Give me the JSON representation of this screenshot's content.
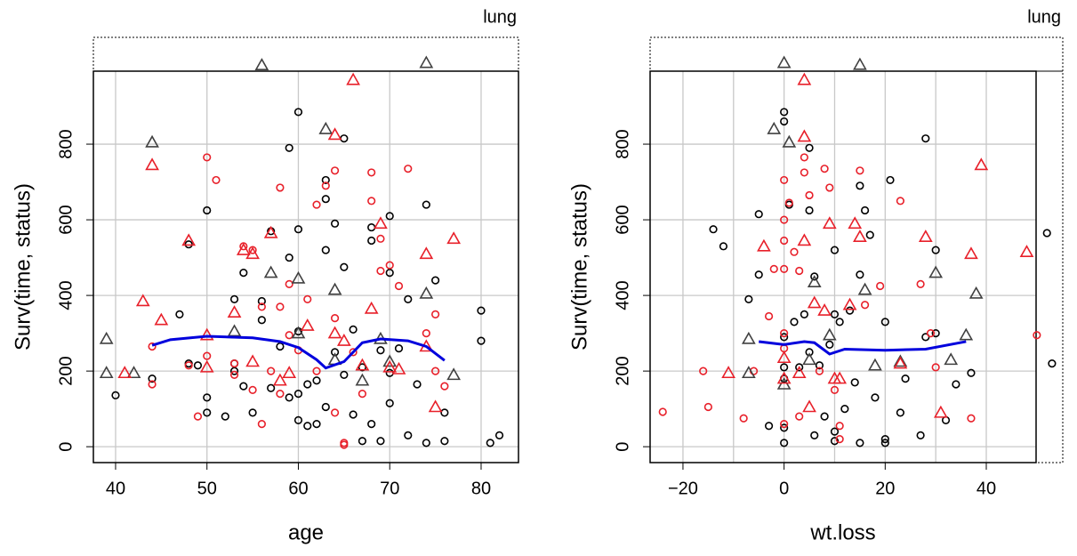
{
  "chart_data": [
    {
      "type": "scatter",
      "strip": "lung",
      "xlabel": "age",
      "ylabel": "Surv(time, status)",
      "xlim": [
        37.57,
        84.09
      ],
      "ylim": [
        -42,
        993
      ],
      "xticks": [
        40,
        50,
        60,
        70,
        80
      ],
      "yticks": [
        0,
        200,
        400,
        600,
        800
      ],
      "grid": true,
      "series": [
        {
          "style": "circle",
          "color": "#000000",
          "x": [
            40,
            44,
            47,
            48,
            48,
            49,
            50,
            50,
            50,
            52,
            53,
            53,
            53,
            54,
            54,
            55,
            56,
            56,
            57,
            57,
            58,
            59,
            59,
            59,
            60,
            60,
            60,
            60,
            60,
            61,
            61,
            62,
            62,
            63,
            63,
            63,
            63,
            64,
            64,
            65,
            65,
            65,
            66,
            66,
            67,
            67,
            68,
            68,
            68,
            69,
            69,
            70,
            70,
            70,
            70,
            71,
            72,
            72,
            73,
            74,
            74,
            75,
            76,
            76,
            80,
            80,
            81,
            82
          ],
          "values": [
            136,
            180,
            350,
            220,
            535,
            215,
            625,
            130,
            90,
            80,
            390,
            200,
            220,
            460,
            160,
            90,
            385,
            335,
            570,
            155,
            265,
            790,
            500,
            130,
            885,
            575,
            305,
            140,
            70,
            165,
            55,
            175,
            60,
            705,
            655,
            520,
            105,
            250,
            590,
            815,
            475,
            190,
            310,
            85,
            210,
            15,
            580,
            545,
            60,
            255,
            15,
            610,
            460,
            195,
            115,
            260,
            390,
            30,
            165,
            640,
            10,
            440,
            90,
            15,
            360,
            280,
            10,
            30
          ]
        },
        {
          "style": "circle",
          "color": "#e8202a",
          "x": [
            44,
            44,
            48,
            49,
            50,
            50,
            51,
            53,
            53,
            54,
            55,
            55,
            56,
            56,
            57,
            58,
            58,
            58,
            59,
            59,
            60,
            61,
            62,
            62,
            63,
            64,
            64,
            64,
            65,
            65,
            66,
            67,
            68,
            68,
            69,
            69,
            70,
            71,
            72,
            74,
            75,
            75,
            76
          ],
          "values": [
            265,
            165,
            215,
            80,
            765,
            240,
            705,
            220,
            190,
            530,
            520,
            150,
            60,
            370,
            200,
            370,
            685,
            140,
            295,
            430,
            255,
            390,
            640,
            200,
            690,
            730,
            340,
            90,
            10,
            5,
            250,
            140,
            725,
            650,
            465,
            550,
            480,
            425,
            735,
            300,
            350,
            200,
            160
          ]
        },
        {
          "style": "triangle",
          "color": "#404040",
          "x": [
            39,
            39,
            42,
            44,
            53,
            56,
            57,
            60,
            60,
            63,
            64,
            64,
            67,
            69,
            70,
            74,
            74,
            77
          ],
          "values": [
            285,
            195,
            195,
            805,
            305,
            1009,
            460,
            445,
            300,
            840,
            415,
            230,
            175,
            285,
            225,
            1015,
            405,
            190
          ]
        },
        {
          "style": "triangle",
          "color": "#e8202a",
          "x": [
            41,
            43,
            44,
            45,
            48,
            50,
            50,
            53,
            54,
            55,
            55,
            57,
            58,
            59,
            61,
            64,
            64,
            65,
            66,
            67,
            68,
            69,
            70,
            71,
            74,
            74,
            75,
            77
          ],
          "values": [
            195,
            385,
            745,
            335,
            545,
            210,
            295,
            355,
            520,
            510,
            225,
            565,
            175,
            195,
            320,
            825,
            300,
            280,
            970,
            215,
            365,
            590,
            210,
            205,
            510,
            265,
            105,
            550
          ]
        },
        {
          "style": "line",
          "color": "#0000dd",
          "x": [
            44,
            46,
            50,
            55,
            58,
            60,
            62,
            63,
            65,
            67,
            69,
            72,
            74,
            76
          ],
          "values": [
            268,
            283,
            292,
            288,
            278,
            262,
            230,
            208,
            225,
            275,
            285,
            280,
            265,
            228
          ]
        }
      ]
    },
    {
      "type": "scatter",
      "strip": "lung",
      "xlabel": "wt.loss",
      "ylabel": "Surv(time, status)",
      "xlim": [
        -26.5,
        49.85
      ],
      "ylim": [
        -42,
        993
      ],
      "xticks": [
        {
          "value": -20,
          "label": "−20"
        },
        0,
        20,
        40
      ],
      "yticks": [
        0,
        200,
        400,
        600,
        800
      ],
      "grid": true,
      "xgrid": [
        -20,
        -10,
        0,
        10,
        20,
        30,
        40
      ],
      "series": [
        {
          "style": "circle",
          "color": "#000000",
          "x": [
            -14,
            -12,
            -7,
            -5,
            -5,
            -3,
            0,
            0,
            0,
            0,
            0,
            0,
            0,
            1,
            2,
            3,
            4,
            5,
            5,
            5,
            6,
            6,
            7,
            8,
            9,
            10,
            10,
            10,
            10,
            11,
            12,
            13,
            14,
            15,
            15,
            15,
            16,
            17,
            18,
            20,
            20,
            20,
            21,
            23,
            24,
            27,
            28,
            28,
            30,
            30,
            32,
            34,
            37,
            52,
            53
          ],
          "values": [
            575,
            530,
            390,
            615,
            455,
            55,
            885,
            860,
            290,
            210,
            180,
            50,
            10,
            640,
            330,
            210,
            350,
            790,
            625,
            250,
            450,
            30,
            215,
            80,
            270,
            520,
            350,
            15,
            40,
            330,
            100,
            360,
            170,
            690,
            455,
            10,
            625,
            560,
            130,
            330,
            20,
            10,
            705,
            90,
            180,
            30,
            815,
            290,
            520,
            300,
            70,
            165,
            195,
            565,
            220
          ]
        },
        {
          "style": "circle",
          "color": "#e8202a",
          "x": [
            -24,
            -16,
            -15,
            -8,
            -6,
            -3,
            -2,
            0,
            0,
            0,
            0,
            0,
            0,
            0,
            1,
            2,
            3,
            3,
            4,
            4,
            5,
            7,
            8,
            9,
            10,
            11,
            11,
            15,
            16,
            19,
            23,
            27,
            29,
            30,
            37,
            50
          ],
          "values": [
            92,
            200,
            105,
            75,
            200,
            345,
            470,
            705,
            600,
            545,
            470,
            300,
            260,
            60,
            645,
            515,
            465,
            80,
            765,
            725,
            665,
            200,
            735,
            685,
            150,
            55,
            20,
            730,
            375,
            425,
            650,
            430,
            300,
            210,
            75,
            295
          ]
        },
        {
          "style": "triangle",
          "color": "#404040",
          "x": [
            -7,
            -7,
            -2,
            0,
            0,
            1,
            5,
            6,
            9,
            15,
            16,
            18,
            23,
            30,
            33,
            36,
            38
          ],
          "values": [
            285,
            195,
            840,
            1015,
            165,
            805,
            230,
            435,
            295,
            1010,
            415,
            215,
            225,
            460,
            230,
            295,
            405
          ]
        },
        {
          "style": "triangle",
          "color": "#e8202a",
          "x": [
            -11,
            -4,
            0,
            0,
            3,
            4,
            4,
            4,
            5,
            6,
            8,
            9,
            10,
            11,
            13,
            14,
            15,
            23,
            28,
            31,
            37,
            39,
            48
          ],
          "values": [
            195,
            530,
            180,
            235,
            195,
            970,
            545,
            820,
            105,
            380,
            360,
            590,
            180,
            180,
            375,
            590,
            555,
            220,
            555,
            90,
            510,
            745,
            515
          ]
        },
        {
          "style": "line",
          "color": "#0000dd",
          "x": [
            -5,
            0,
            4,
            6,
            9,
            12,
            20,
            28,
            36
          ],
          "values": [
            278,
            270,
            278,
            275,
            245,
            258,
            255,
            258,
            278
          ]
        }
      ]
    }
  ]
}
